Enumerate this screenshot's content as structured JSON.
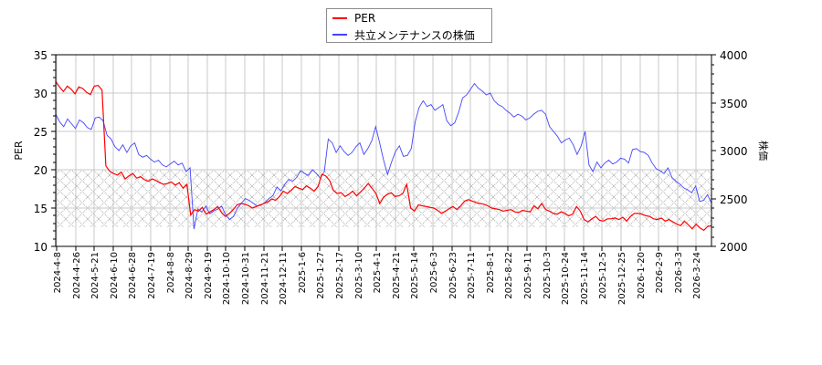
{
  "legend": {
    "items": [
      {
        "label": "PER",
        "color": "#ff0000"
      },
      {
        "label": "共立メンテナンスの株価",
        "color": "#4444ff"
      }
    ]
  },
  "chart_data": {
    "type": "line",
    "title": "",
    "xlabel": "",
    "ylabel_left": "PER",
    "ylabel_right": "株価",
    "ylim_left": [
      10,
      35
    ],
    "ylim_right": [
      2000,
      4000
    ],
    "yticks_left": [
      10,
      15,
      20,
      25,
      30,
      35
    ],
    "yticks_right": [
      2000,
      2500,
      3000,
      3500,
      4000
    ],
    "grid": true,
    "legend_position": "top-center",
    "shaded_band": {
      "axis": "left",
      "from": 12.5,
      "to": 20,
      "pattern": "crosshatch"
    },
    "x_tick_labels": [
      "2024-4-8",
      "2024-4-26",
      "2024-5-21",
      "2024-6-10",
      "2024-6-28",
      "2024-7-19",
      "2024-8-8",
      "2024-8-29",
      "2024-9-19",
      "2024-10-10",
      "2024-10-31",
      "2024-11-21",
      "2024-12-11",
      "2025-1-6",
      "2025-1-27",
      "2025-2-17",
      "2025-3-10",
      "2025-4-1",
      "2025-4-21",
      "2025-5-14",
      "2025-6-3",
      "2025-6-23",
      "2025-7-11",
      "2025-8-1",
      "2025-8-22",
      "2025-9-11",
      "2025-10-3",
      "2025-10-24",
      "2025-11-14",
      "2025-12-5",
      "2025-12-25",
      "2026-1-20",
      "2026-2-9",
      "2026-3-3",
      "2026-3-24"
    ],
    "series": [
      {
        "name": "PER",
        "color": "#ff0000",
        "axis": "left",
        "values": [
          31.5,
          30.8,
          30.2,
          30.9,
          30.5,
          29.9,
          30.8,
          30.6,
          30.1,
          29.8,
          30.9,
          31.0,
          30.4,
          20.5,
          19.8,
          19.5,
          19.3,
          19.7,
          18.8,
          19.2,
          19.5,
          18.9,
          19.1,
          18.7,
          18.5,
          18.8,
          18.6,
          18.3,
          18.1,
          18.2,
          18.4,
          18.0,
          18.3,
          17.6,
          18.1,
          14.1,
          14.8,
          14.6,
          15.1,
          14.2,
          14.5,
          14.8,
          15.2,
          14.4,
          13.9,
          14.3,
          14.8,
          15.4,
          15.6,
          15.5,
          15.3,
          15.0,
          15.2,
          15.4,
          15.6,
          15.8,
          16.2,
          16.0,
          16.5,
          17.2,
          16.9,
          17.3,
          17.8,
          17.6,
          17.4,
          17.9,
          17.6,
          17.2,
          17.8,
          19.4,
          19.2,
          18.6,
          17.3,
          16.9,
          17.0,
          16.5,
          16.8,
          17.2,
          16.6,
          17.1,
          17.6,
          18.2,
          17.6,
          16.9,
          15.6,
          16.4,
          16.8,
          17.0,
          16.5,
          16.6,
          16.9,
          18.1,
          15.0,
          14.6,
          15.4,
          15.3,
          15.2,
          15.1,
          15.0,
          14.7,
          14.3,
          14.6,
          14.9,
          15.2,
          14.8,
          15.3,
          15.9,
          16.1,
          15.9,
          15.7,
          15.6,
          15.5,
          15.3,
          15.0,
          14.9,
          14.8,
          14.6,
          14.7,
          14.8,
          14.5,
          14.4,
          14.7,
          14.6,
          14.5,
          15.3,
          14.9,
          15.6,
          14.8,
          14.6,
          14.3,
          14.2,
          14.5,
          14.3,
          14.0,
          14.2,
          15.2,
          14.6,
          13.5,
          13.2,
          13.6,
          13.9,
          13.4,
          13.3,
          13.6,
          13.6,
          13.7,
          13.5,
          13.8,
          13.3,
          13.9,
          14.3,
          14.3,
          14.2,
          14.0,
          13.9,
          13.6,
          13.5,
          13.7,
          13.3,
          13.5,
          13.2,
          12.9,
          12.7,
          13.3,
          12.8,
          12.3,
          12.9,
          12.4,
          12.1,
          12.6,
          12.7
        ]
      },
      {
        "name": "共立メンテナンスの株価",
        "color": "#4444ff",
        "axis": "right",
        "values": [
          3380,
          3300,
          3250,
          3330,
          3280,
          3230,
          3320,
          3290,
          3240,
          3220,
          3340,
          3350,
          3310,
          3160,
          3120,
          3040,
          3000,
          3060,
          2980,
          3050,
          3080,
          2960,
          2930,
          2950,
          2910,
          2880,
          2900,
          2850,
          2830,
          2860,
          2890,
          2850,
          2870,
          2780,
          2820,
          2180,
          2390,
          2360,
          2420,
          2340,
          2370,
          2390,
          2420,
          2330,
          2280,
          2310,
          2400,
          2450,
          2500,
          2480,
          2450,
          2420,
          2430,
          2460,
          2500,
          2530,
          2620,
          2580,
          2650,
          2700,
          2680,
          2720,
          2790,
          2760,
          2740,
          2800,
          2760,
          2710,
          2780,
          3120,
          3080,
          2980,
          3050,
          2990,
          2950,
          2980,
          3040,
          3080,
          2960,
          3020,
          3100,
          3250,
          3080,
          2900,
          2750,
          2880,
          2990,
          3050,
          2940,
          2950,
          3020,
          3300,
          3450,
          3520,
          3460,
          3480,
          3420,
          3450,
          3480,
          3310,
          3260,
          3290,
          3400,
          3550,
          3580,
          3640,
          3700,
          3650,
          3620,
          3580,
          3600,
          3520,
          3480,
          3460,
          3420,
          3390,
          3350,
          3380,
          3360,
          3320,
          3340,
          3380,
          3410,
          3420,
          3380,
          3250,
          3200,
          3150,
          3080,
          3110,
          3130,
          3060,
          2960,
          3050,
          3200,
          2850,
          2780,
          2880,
          2820,
          2870,
          2900,
          2860,
          2880,
          2920,
          2910,
          2870,
          3010,
          3020,
          2990,
          2980,
          2950,
          2870,
          2810,
          2790,
          2760,
          2820,
          2720,
          2680,
          2650,
          2610,
          2590,
          2560,
          2630,
          2470,
          2480,
          2540,
          2450
        ]
      }
    ]
  }
}
